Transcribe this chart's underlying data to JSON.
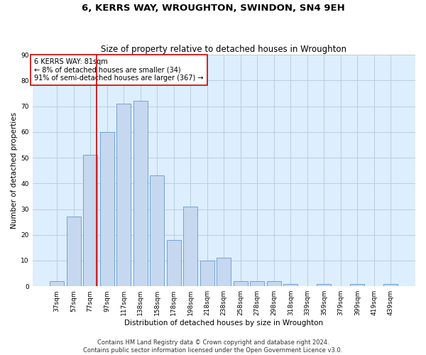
{
  "title": "6, KERRS WAY, WROUGHTON, SWINDON, SN4 9EH",
  "subtitle": "Size of property relative to detached houses in Wroughton",
  "xlabel": "Distribution of detached houses by size in Wroughton",
  "ylabel": "Number of detached properties",
  "bar_labels": [
    "37sqm",
    "57sqm",
    "77sqm",
    "97sqm",
    "117sqm",
    "138sqm",
    "158sqm",
    "178sqm",
    "198sqm",
    "218sqm",
    "238sqm",
    "258sqm",
    "278sqm",
    "298sqm",
    "318sqm",
    "339sqm",
    "359sqm",
    "379sqm",
    "399sqm",
    "419sqm",
    "439sqm"
  ],
  "bar_values": [
    2,
    27,
    51,
    60,
    71,
    72,
    43,
    18,
    31,
    10,
    11,
    2,
    2,
    2,
    1,
    0,
    1,
    0,
    1,
    0,
    1
  ],
  "bar_color": "#c5d8f0",
  "bar_edge_color": "#6699cc",
  "background_color": "#ffffff",
  "axes_bg_color": "#ddeeff",
  "grid_color": "#bbccdd",
  "ylim": [
    0,
    90
  ],
  "yticks": [
    0,
    10,
    20,
    30,
    40,
    50,
    60,
    70,
    80,
    90
  ],
  "property_line_label": "6 KERRS WAY: 81sqm",
  "annotation_line1": "← 8% of detached houses are smaller (34)",
  "annotation_line2": "91% of semi-detached houses are larger (367) →",
  "annotation_box_color": "#ffffff",
  "annotation_box_edge": "#cc0000",
  "property_line_color": "#cc0000",
  "footer1": "Contains HM Land Registry data © Crown copyright and database right 2024.",
  "footer2": "Contains public sector information licensed under the Open Government Licence v3.0.",
  "title_fontsize": 9.5,
  "subtitle_fontsize": 8.5,
  "axis_label_fontsize": 7.5,
  "tick_fontsize": 6.5,
  "annotation_fontsize": 7,
  "footer_fontsize": 6,
  "line_x_index": 2.4
}
